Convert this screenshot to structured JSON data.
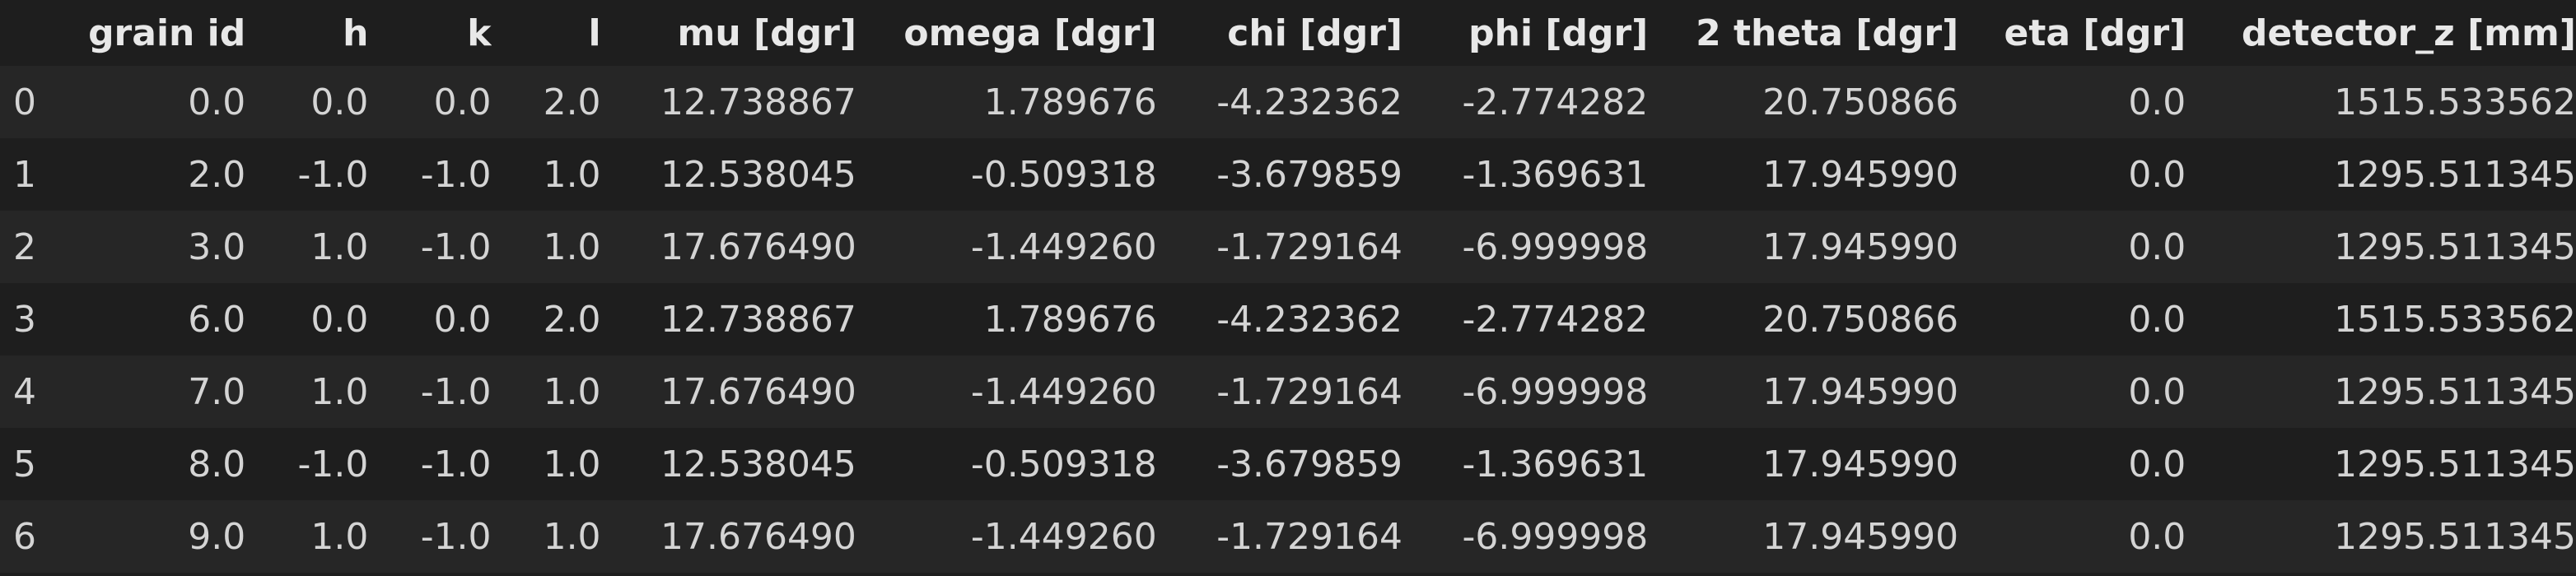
{
  "table": {
    "columns": [
      "",
      "grain id",
      "h",
      "k",
      "l",
      "mu [dgr]",
      "omega [dgr]",
      "chi [dgr]",
      "phi [dgr]",
      "2 theta [dgr]",
      "eta [dgr]",
      "detector_z [mm]"
    ],
    "rows": [
      [
        "0",
        "0.0",
        "0.0",
        "0.0",
        "2.0",
        "12.738867",
        "1.789676",
        "-4.232362",
        "-2.774282",
        "20.750866",
        "0.0",
        "1515.533562"
      ],
      [
        "1",
        "2.0",
        "-1.0",
        "-1.0",
        "1.0",
        "12.538045",
        "-0.509318",
        "-3.679859",
        "-1.369631",
        "17.945990",
        "0.0",
        "1295.511345"
      ],
      [
        "2",
        "3.0",
        "1.0",
        "-1.0",
        "1.0",
        "17.676490",
        "-1.449260",
        "-1.729164",
        "-6.999998",
        "17.945990",
        "0.0",
        "1295.511345"
      ],
      [
        "3",
        "6.0",
        "0.0",
        "0.0",
        "2.0",
        "12.738867",
        "1.789676",
        "-4.232362",
        "-2.774282",
        "20.750866",
        "0.0",
        "1515.533562"
      ],
      [
        "4",
        "7.0",
        "1.0",
        "-1.0",
        "1.0",
        "17.676490",
        "-1.449260",
        "-1.729164",
        "-6.999998",
        "17.945990",
        "0.0",
        "1295.511345"
      ],
      [
        "5",
        "8.0",
        "-1.0",
        "-1.0",
        "1.0",
        "12.538045",
        "-0.509318",
        "-3.679859",
        "-1.369631",
        "17.945990",
        "0.0",
        "1295.511345"
      ],
      [
        "6",
        "9.0",
        "1.0",
        "-1.0",
        "1.0",
        "17.676490",
        "-1.449260",
        "-1.729164",
        "-6.999998",
        "17.945990",
        "0.0",
        "1295.511345"
      ]
    ]
  }
}
